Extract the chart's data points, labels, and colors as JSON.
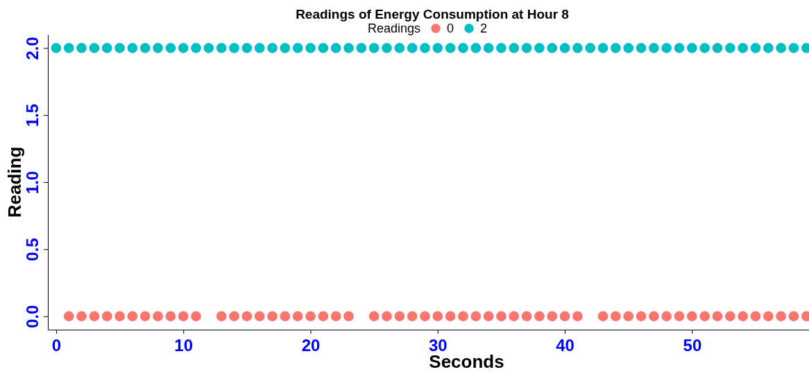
{
  "chart_data": {
    "type": "scatter",
    "title": "Readings of Energy Consumption at Hour 8",
    "xlabel": "Seconds",
    "ylabel": "Reading",
    "legend_title": "Readings",
    "legend": "top",
    "marker": "circle",
    "grid": false,
    "xlim": [
      -0.65,
      59.2
    ],
    "xticks": [
      0,
      10,
      20,
      30,
      40,
      50
    ],
    "ylim": [
      -0.1,
      2.1
    ],
    "yticks": [
      {
        "value": 0,
        "label": "0.0"
      },
      {
        "value": 0.5,
        "label": "0.5"
      },
      {
        "value": 1,
        "label": "1.0"
      },
      {
        "value": 1.5,
        "label": "1.5"
      },
      {
        "value": 2,
        "label": "2.0"
      }
    ],
    "series": [
      {
        "name": "0",
        "color": "#f8766d",
        "x": [
          1,
          2,
          3,
          4,
          5,
          6,
          7,
          8,
          9,
          10,
          11,
          13,
          14,
          15,
          16,
          17,
          18,
          19,
          20,
          21,
          22,
          23,
          25,
          26,
          27,
          28,
          29,
          30,
          31,
          32,
          33,
          34,
          35,
          36,
          37,
          38,
          39,
          40,
          41,
          43,
          44,
          45,
          46,
          47,
          48,
          49,
          50,
          51,
          52,
          53,
          54,
          55,
          56,
          57,
          58,
          59
        ],
        "values": [
          0,
          0,
          0,
          0,
          0,
          0,
          0,
          0,
          0,
          0,
          0,
          0,
          0,
          0,
          0,
          0,
          0,
          0,
          0,
          0,
          0,
          0,
          0,
          0,
          0,
          0,
          0,
          0,
          0,
          0,
          0,
          0,
          0,
          0,
          0,
          0,
          0,
          0,
          0,
          0,
          0,
          0,
          0,
          0,
          0,
          0,
          0,
          0,
          0,
          0,
          0,
          0,
          0,
          0,
          0,
          0
        ]
      },
      {
        "name": "2",
        "color": "#00bfc4",
        "x": [
          0,
          1,
          2,
          3,
          4,
          5,
          6,
          7,
          8,
          9,
          10,
          11,
          12,
          13,
          14,
          15,
          16,
          17,
          18,
          19,
          20,
          21,
          22,
          23,
          24,
          25,
          26,
          27,
          28,
          29,
          30,
          31,
          32,
          33,
          34,
          35,
          36,
          37,
          38,
          39,
          40,
          41,
          42,
          43,
          44,
          45,
          46,
          47,
          48,
          49,
          50,
          51,
          52,
          53,
          54,
          55,
          56,
          57,
          58,
          59
        ],
        "values": [
          2,
          2,
          2,
          2,
          2,
          2,
          2,
          2,
          2,
          2,
          2,
          2,
          2,
          2,
          2,
          2,
          2,
          2,
          2,
          2,
          2,
          2,
          2,
          2,
          2,
          2,
          2,
          2,
          2,
          2,
          2,
          2,
          2,
          2,
          2,
          2,
          2,
          2,
          2,
          2,
          2,
          2,
          2,
          2,
          2,
          2,
          2,
          2,
          2,
          2,
          2,
          2,
          2,
          2,
          2,
          2,
          2,
          2,
          2,
          2
        ]
      }
    ]
  }
}
